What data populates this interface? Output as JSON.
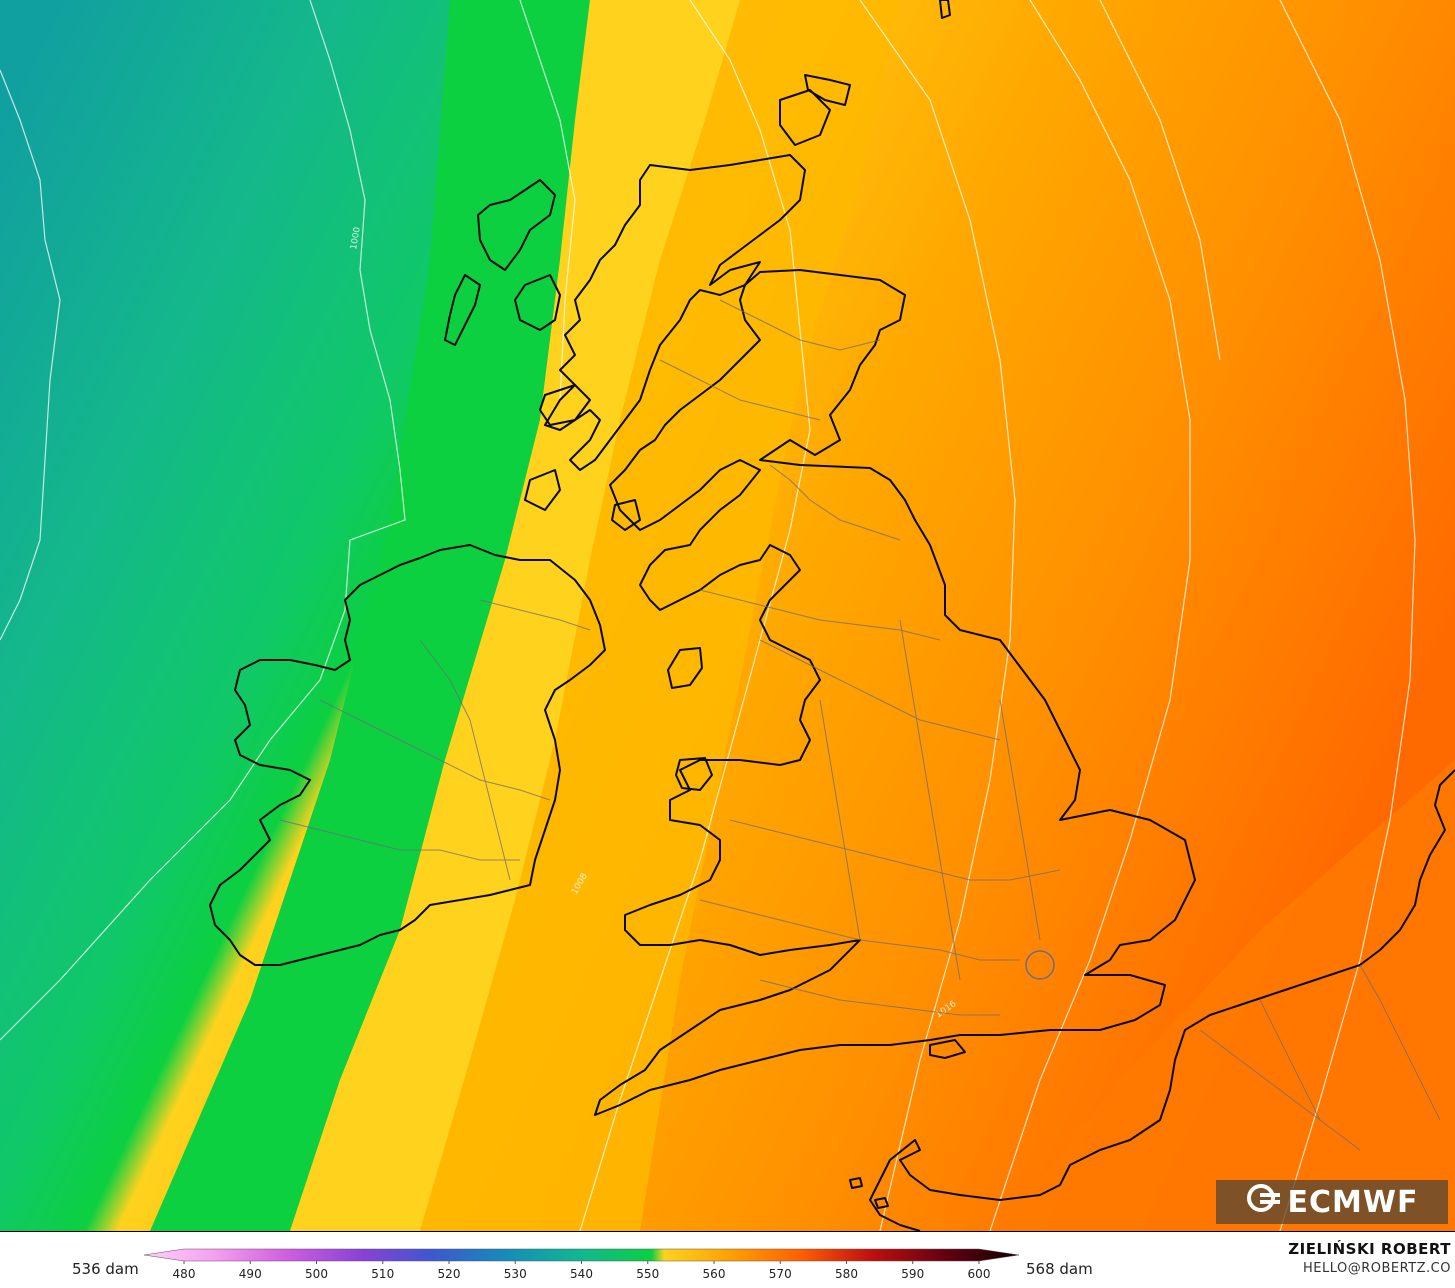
{
  "legend": {
    "min_label": "536 dam",
    "max_label": "568 dam",
    "ticks": [
      "480",
      "490",
      "500",
      "510",
      "520",
      "530",
      "540",
      "550",
      "560",
      "570",
      "580",
      "590",
      "600"
    ]
  },
  "credits": {
    "author": "ZIELIŃSKI ROBERT",
    "email": "HELLO@ROBERTZ.CO"
  },
  "logo": {
    "text": "ECMWF",
    "icon": "ecmwf-logo-icon"
  },
  "isobar_labels": [
    "1000",
    "1008",
    "1016"
  ],
  "colors": {
    "deep_teal": "#11a0a0",
    "green": "#0cd040",
    "yellow": "#ffd21e",
    "orange": "#ffa000",
    "deep_orange": "#ff6a00"
  }
}
